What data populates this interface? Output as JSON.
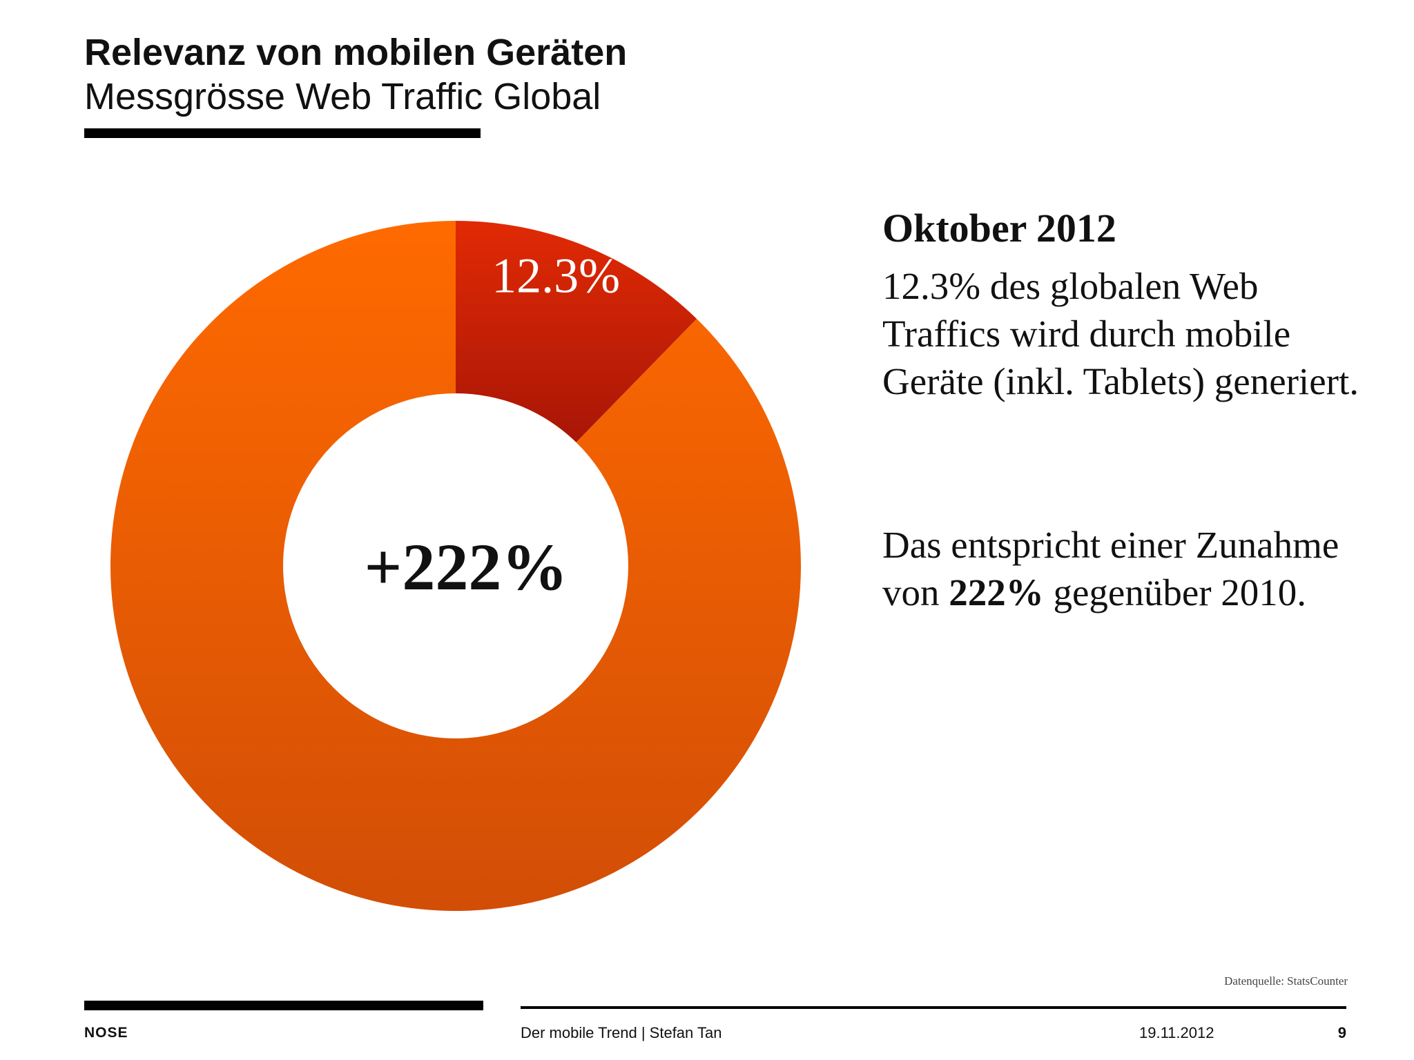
{
  "header": {
    "title": "Relevanz von mobilen Geräten",
    "subtitle": "Messgrösse Web Traffic Global"
  },
  "chart_data": {
    "type": "pie",
    "donut": true,
    "slices": [
      {
        "value": 12.3,
        "label": "12.3%",
        "color": "#d42a0c"
      },
      {
        "value": 87.7,
        "label": "",
        "color": "#f96a0c"
      }
    ],
    "center_label": "+222%"
  },
  "side": {
    "heading": "Oktober 2012",
    "text1": "12.3% des globalen Web Traffics wird durch mobile Geräte (inkl. Tablets) generiert.",
    "text2_before": "Das entspricht einer Zunahme von ",
    "text2_bold": "222%",
    "text2_after": " gegenüber 2010."
  },
  "source": "Datenquelle: StatsCounter",
  "footer": {
    "logo": "NOSE",
    "title": "Der mobile Trend | Stefan Tan",
    "date": "19.11.2012",
    "page": "9"
  }
}
